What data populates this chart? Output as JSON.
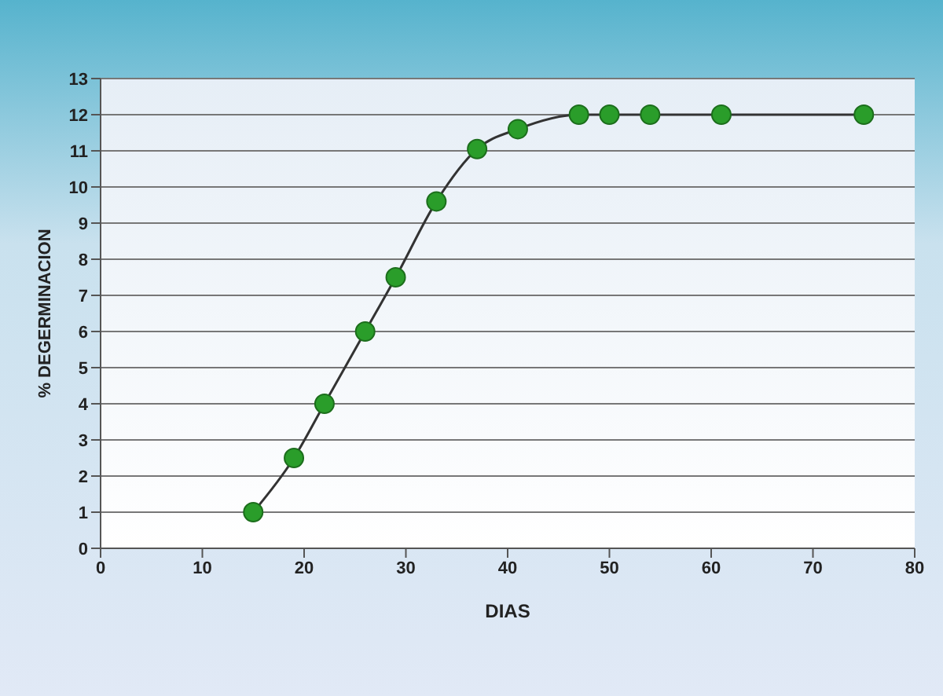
{
  "chart_data": {
    "type": "line",
    "xlabel": "DIAS",
    "ylabel": "% DEGERMINACION",
    "x": [
      15,
      19,
      22,
      26,
      29,
      33,
      37,
      41,
      47,
      50,
      54,
      61,
      75
    ],
    "series": [
      {
        "color": "#2a9d2a",
        "values": [
          1,
          2.5,
          4,
          6,
          7.5,
          9.6,
          11.05,
          11.6,
          12,
          12,
          12,
          12,
          12
        ]
      }
    ],
    "xlim": [
      0,
      80
    ],
    "xticks": [
      0,
      10,
      20,
      30,
      40,
      50,
      60,
      70,
      80
    ],
    "ylim": [
      0,
      13
    ],
    "yticks": [
      0,
      1,
      2,
      3,
      4,
      5,
      6,
      7,
      8,
      9,
      10,
      11,
      12,
      13
    ],
    "grid": "y",
    "marker": "circle",
    "line_style": "solid",
    "legend": false
  }
}
